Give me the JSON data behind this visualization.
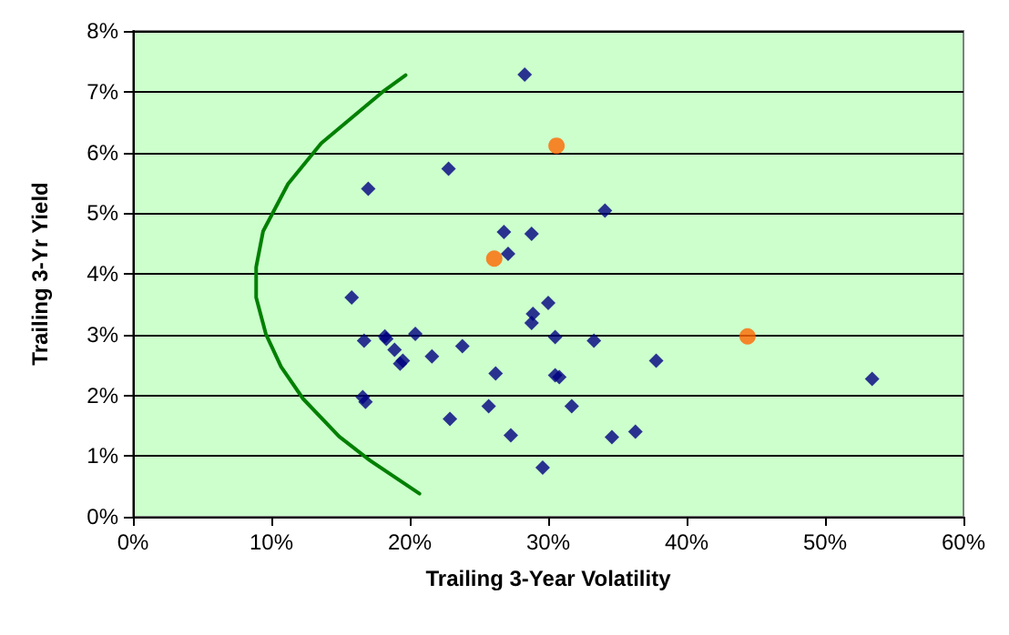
{
  "chart_data": {
    "type": "scatter",
    "xlabel": "Trailing 3-Year Volatility",
    "ylabel": "Trailing 3-Yr Yield",
    "xlim": [
      0,
      60
    ],
    "xticks": [
      {
        "value": 0,
        "label": "0%"
      },
      {
        "value": 10,
        "label": "10%"
      },
      {
        "value": 20,
        "label": "20%"
      },
      {
        "value": 30,
        "label": "30%"
      },
      {
        "value": 40,
        "label": "40%"
      },
      {
        "value": 50,
        "label": "50%"
      },
      {
        "value": 60,
        "label": "60%"
      }
    ],
    "ylim": [
      0,
      8
    ],
    "yticks": [
      {
        "value": 0,
        "label": "0%"
      },
      {
        "value": 1,
        "label": "1%"
      },
      {
        "value": 2,
        "label": "2%"
      },
      {
        "value": 3,
        "label": "3%"
      },
      {
        "value": 4,
        "label": "4%"
      },
      {
        "value": 5,
        "label": "5%"
      },
      {
        "value": 6,
        "label": "6%"
      },
      {
        "value": 7,
        "label": "7%"
      },
      {
        "value": 8,
        "label": "8%"
      }
    ],
    "grid": "y",
    "series": [
      {
        "color": "#000080",
        "marker": "diamond",
        "x": [
          28.3,
          17.0,
          22.8,
          26.8,
          28.8,
          27.1,
          15.8,
          30.0,
          28.9,
          28.8,
          16.7,
          18.2,
          18.3,
          20.4,
          18.9,
          19.5,
          19.3,
          21.6,
          23.8,
          30.5,
          26.2,
          30.5,
          30.8,
          16.6,
          16.8,
          22.9,
          25.7,
          27.3,
          29.6,
          34.1,
          33.3,
          31.7,
          37.8,
          34.6,
          36.3,
          53.4
        ],
        "values": [
          7.28,
          5.4,
          5.73,
          4.69,
          4.66,
          4.33,
          3.61,
          3.52,
          3.34,
          3.19,
          2.9,
          2.97,
          2.93,
          3.01,
          2.75,
          2.57,
          2.52,
          2.64,
          2.81,
          2.96,
          2.36,
          2.33,
          2.3,
          1.97,
          1.89,
          1.61,
          1.82,
          1.34,
          0.81,
          5.04,
          2.9,
          1.82,
          2.57,
          1.31,
          1.4,
          2.27
        ]
      },
      {
        "color": "#ff6600",
        "marker": "circle",
        "x": [
          26.1,
          30.6,
          44.4
        ],
        "values": [
          4.25,
          6.11,
          2.97
        ]
      },
      {
        "type": "line",
        "color": "#008000",
        "marker": "none",
        "line_style": "solid",
        "x": [
          19.7,
          18.0,
          13.6,
          11.2,
          9.4,
          8.9,
          8.9,
          9.6,
          10.7,
          12.3,
          14.9,
          17.1,
          20.7
        ],
        "values": [
          7.27,
          6.99,
          6.15,
          5.48,
          4.7,
          4.11,
          3.61,
          3.01,
          2.47,
          1.94,
          1.32,
          0.93,
          0.38
        ]
      }
    ]
  }
}
